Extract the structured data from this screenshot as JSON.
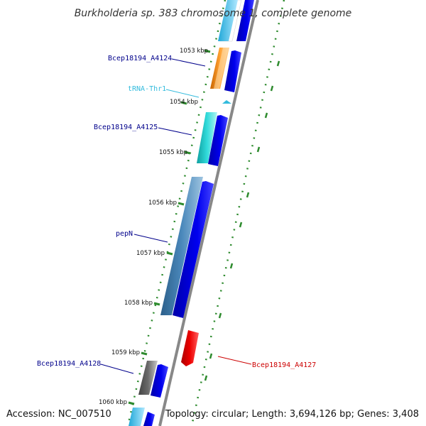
{
  "title": "Burkholderia sp. 383 chromosome 1, complete genome",
  "accession": "Accession: NC_007510",
  "summary": "Topology: circular; Length: 3,694,126 bp; Genes: 3,408",
  "kbp_ticks": [
    "1053 kbp",
    "1054 kbp",
    "1055 kbp",
    "1056 kbp",
    "1057 kbp",
    "1058 kbp",
    "1059 kbp",
    "1060 kbp"
  ],
  "genes": [
    {
      "name": "Bcep18194_A4124",
      "color": "#00008b"
    },
    {
      "name": "tRNA-Thr1",
      "color": "#33bbdd"
    },
    {
      "name": "Bcep18194_A4125",
      "color": "#00008b"
    },
    {
      "name": "pepN",
      "color": "#00008b"
    },
    {
      "name": "Bcep18194_A4128",
      "color": "#00008b"
    },
    {
      "name": "Bcep18194_A4127",
      "color": "#cc0000"
    }
  ],
  "colors": {
    "backbone": "#888888",
    "cds_forward": "#0000ee",
    "gc_ticks": "#2e8b2e",
    "orange": "#ff9900",
    "teal": "#22cccc",
    "steelblue": "#4682b4",
    "gray": "#666666",
    "red": "#ee0000"
  }
}
